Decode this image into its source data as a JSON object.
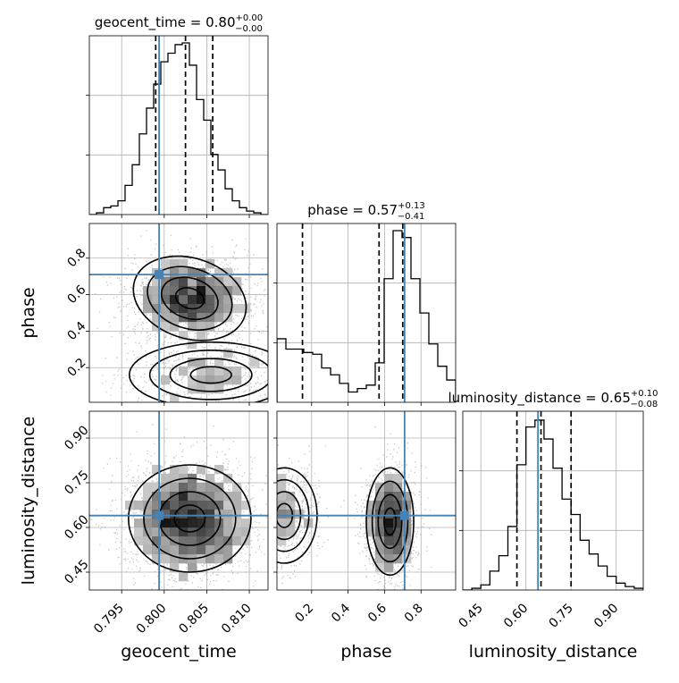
{
  "chart_data": {
    "type": "corner",
    "parameters": [
      "geocent_time",
      "phase",
      "luminosity_distance"
    ],
    "axis_labels": {
      "x": [
        "geocent_time",
        "phase",
        "luminosity_distance"
      ],
      "y_row2": "phase",
      "y_row3": "luminosity_distance"
    },
    "titles": [
      {
        "name": "geocent_time",
        "value": "0.80",
        "plus": "+0.00",
        "minus": "−0.00"
      },
      {
        "name": "phase",
        "value": "0.57",
        "plus": "+0.13",
        "minus": "−0.41"
      },
      {
        "name": "luminosity_distance",
        "value": "0.65",
        "plus": "+0.10",
        "minus": "−0.08"
      }
    ],
    "ranges": {
      "geocent_time": [
        0.7912,
        0.8122
      ],
      "phase": [
        0.01,
        0.99
      ],
      "luminosity_distance": [
        0.39,
        0.99
      ]
    },
    "ticks": {
      "geocent_time": {
        "values": [
          0.795,
          0.8,
          0.805,
          0.81
        ],
        "labels": [
          "0.795",
          "0.800",
          "0.805",
          "0.810"
        ]
      },
      "phase": {
        "values": [
          0.2,
          0.4,
          0.6,
          0.8
        ],
        "labels": [
          "0.2",
          "0.4",
          "0.6",
          "0.8"
        ]
      },
      "luminosity_distance": {
        "values": [
          0.45,
          0.6,
          0.75,
          0.9
        ],
        "labels": [
          "0.45",
          "0.60",
          "0.75",
          "0.90"
        ]
      }
    },
    "truths": {
      "geocent_time": 0.7994,
      "phase": 0.71,
      "luminosity_distance": 0.64
    },
    "quantiles": {
      "geocent_time": [
        0.799,
        0.8025,
        0.8057
      ],
      "phase": [
        0.15,
        0.57,
        0.7
      ],
      "luminosity_distance": [
        0.57,
        0.65,
        0.75
      ]
    },
    "histograms": {
      "geocent_time": [
        0.0,
        0.01,
        0.04,
        0.05,
        0.08,
        0.17,
        0.29,
        0.47,
        0.62,
        0.76,
        0.89,
        0.94,
        0.99,
        1.0,
        0.87,
        0.67,
        0.55,
        0.35,
        0.26,
        0.15,
        0.08,
        0.04,
        0.02,
        0.01,
        0.0
      ],
      "phase": [
        0.37,
        0.31,
        0.31,
        0.29,
        0.28,
        0.2,
        0.16,
        0.11,
        0.06,
        0.08,
        0.1,
        0.23,
        0.72,
        1.0,
        0.96,
        0.72,
        0.52,
        0.34,
        0.21,
        0.13
      ],
      "luminosity_distance": [
        0.0,
        0.01,
        0.03,
        0.11,
        0.2,
        0.37,
        0.73,
        0.95,
        0.99,
        0.88,
        0.71,
        0.53,
        0.44,
        0.29,
        0.21,
        0.14,
        0.08,
        0.04,
        0.02,
        0.01
      ]
    },
    "grid": true,
    "truth_color": "#4682b4",
    "contour_color": "#000000"
  }
}
